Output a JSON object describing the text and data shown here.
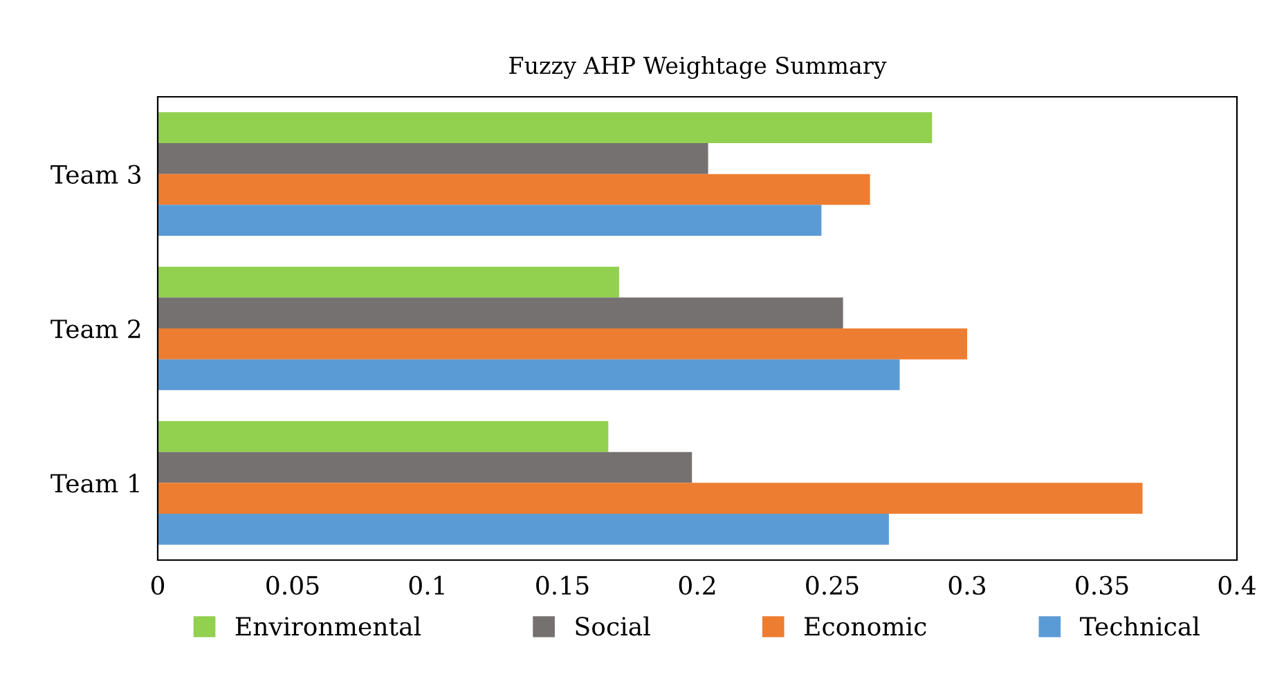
{
  "chart_data": {
    "type": "bar",
    "orientation": "horizontal",
    "title": "Fuzzy AHP Weightage Summary",
    "categories": [
      "Team 3",
      "Team 2",
      "Team 1"
    ],
    "series": [
      {
        "name": "Environmental",
        "color": "#92d050",
        "values": [
          0.287,
          0.171,
          0.167
        ]
      },
      {
        "name": "Social",
        "color": "#767171",
        "values": [
          0.204,
          0.254,
          0.198
        ]
      },
      {
        "name": "Economic",
        "color": "#ed7d31",
        "values": [
          0.264,
          0.3,
          0.365
        ]
      },
      {
        "name": "Technical",
        "color": "#5b9bd5",
        "values": [
          0.246,
          0.275,
          0.271
        ]
      }
    ],
    "xlim": [
      0,
      0.4
    ],
    "xticks": [
      0,
      0.05,
      0.1,
      0.15,
      0.2,
      0.25,
      0.3,
      0.35,
      0.4
    ],
    "grid": false,
    "legend": "bottom"
  }
}
